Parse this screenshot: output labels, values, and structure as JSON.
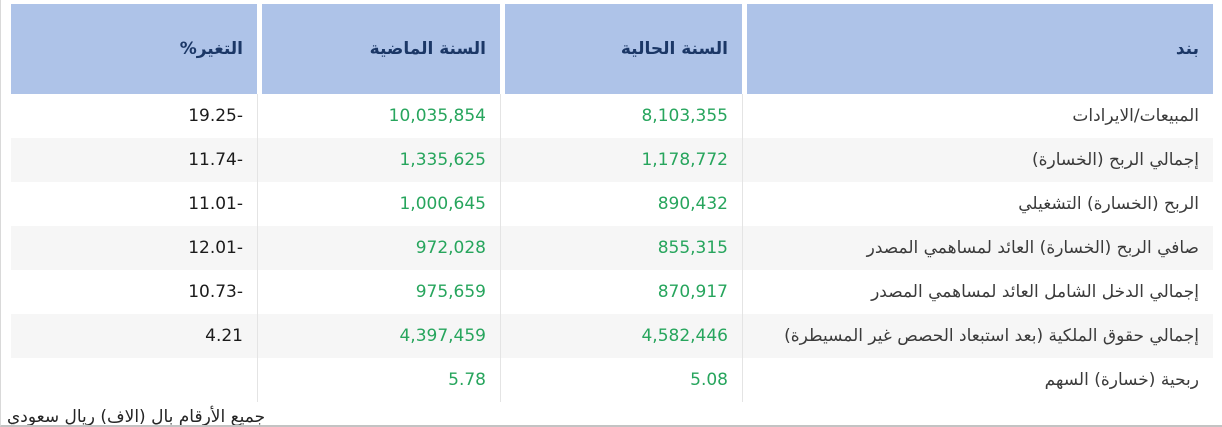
{
  "colors": {
    "header_bg": "#aec3e8",
    "header_text": "#1b3766",
    "positive_value_green": "#27a55d",
    "change_value_text": "#1b1b1b",
    "row_alt_bg": "#f6f6f6",
    "bottom_border": "#c3c3c3"
  },
  "table": {
    "headers": {
      "item": "بند",
      "current": "السنة الحالية",
      "previous": "السنة الماضية",
      "change": "التغير%"
    },
    "rows": [
      {
        "item": "المبيعات/الايرادات",
        "current": "8,103,355",
        "previous": "10,035,854",
        "change": "-19.25"
      },
      {
        "item": "إجمالي الربح (الخسارة)",
        "current": "1,178,772",
        "previous": "1,335,625",
        "change": "-11.74"
      },
      {
        "item": "الربح (الخسارة) التشغيلي",
        "current": "890,432",
        "previous": "1,000,645",
        "change": "-11.01"
      },
      {
        "item": "صافي الربح (الخسارة) العائد لمساهمي المصدر",
        "current": "855,315",
        "previous": "972,028",
        "change": "-12.01"
      },
      {
        "item": "إجمالي الدخل الشامل العائد لمساهمي المصدر",
        "current": "870,917",
        "previous": "975,659",
        "change": "-10.73"
      },
      {
        "item": "إجمالي حقوق الملكية (بعد استبعاد الحصص غير المسيطرة)",
        "current": "4,582,446",
        "previous": "4,397,459",
        "change": "4.21"
      },
      {
        "item": "ربحية (خسارة) السهم",
        "current": "5.08",
        "previous": "5.78",
        "change": ""
      }
    ],
    "footnote": "جميع الأرقام بال (الاف) ريال سعودي"
  }
}
